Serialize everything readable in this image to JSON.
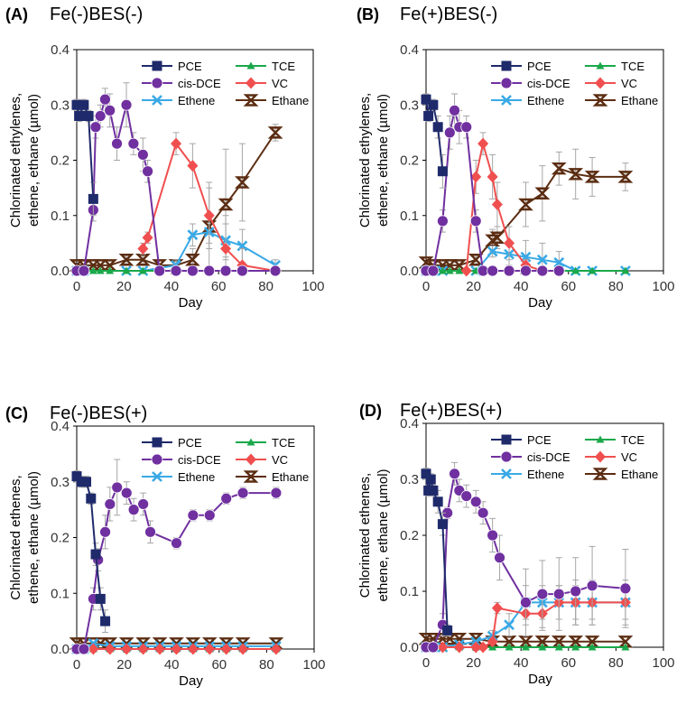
{
  "colors": {
    "PCE": "#1f2a6b",
    "TCE": "#1aa84a",
    "cis-DCE": "#7030a0",
    "VC": "#f04f4f",
    "Ethene": "#39a9e6",
    "Ethane": "#5c2d12",
    "error": "#a6a6a6",
    "axis": "#000000"
  },
  "chart_data": [
    {
      "id": "A",
      "type": "line",
      "panel_label": "(A)",
      "title": "Fe(-)BES(-)",
      "xlabel": "Day",
      "ylabel": [
        "Chlorinated ethylenes,",
        "ethene, ethane (µmol)"
      ],
      "xlim": [
        0,
        100
      ],
      "ylim": [
        0,
        0.4
      ],
      "xticks": [
        "0",
        "20",
        "40",
        "60",
        "80",
        "100"
      ],
      "yticks": [
        "0.0",
        "0.1",
        "0.2",
        "0.3",
        "0.4"
      ],
      "series": [
        {
          "name": "PCE",
          "marker": "square",
          "x": [
            0,
            1,
            3,
            5,
            7
          ],
          "y": [
            0.3,
            0.28,
            0.3,
            0.28,
            0.13
          ],
          "err": [
            0.01,
            0.01,
            0.01,
            0.01,
            0.03
          ]
        },
        {
          "name": "TCE",
          "marker": "triangle",
          "x": [
            0,
            3,
            7,
            10,
            14,
            21,
            28,
            35,
            42,
            49,
            56,
            63,
            70,
            84
          ],
          "y": [
            0,
            0,
            0,
            0,
            0,
            0,
            0,
            0,
            0,
            0,
            0,
            0,
            0,
            0
          ],
          "err": []
        },
        {
          "name": "cis-DCE",
          "marker": "circle",
          "x": [
            0,
            3,
            7,
            8,
            10,
            12,
            14,
            17,
            21,
            24,
            28,
            30,
            35,
            42,
            49,
            56,
            63,
            70,
            84
          ],
          "y": [
            0,
            0,
            0.11,
            0.26,
            0.28,
            0.31,
            0.29,
            0.23,
            0.3,
            0.23,
            0.21,
            0.18,
            0,
            0,
            0,
            0,
            0,
            0,
            0
          ],
          "err": [
            0,
            0,
            0.02,
            0.02,
            0.02,
            0.02,
            0.03,
            0.03,
            0.04,
            0.02,
            0.03,
            0.02,
            0,
            0,
            0,
            0,
            0,
            0,
            0
          ]
        },
        {
          "name": "VC",
          "marker": "diamond",
          "x": [
            28,
            30,
            42,
            49,
            56,
            63,
            70,
            84
          ],
          "y": [
            0.04,
            0.06,
            0.23,
            0.19,
            0.1,
            0.04,
            0.01,
            0
          ],
          "err": [
            0.01,
            0.01,
            0.02,
            0.04,
            0.05,
            0.06,
            0.03,
            0
          ]
        },
        {
          "name": "Ethene",
          "marker": "x",
          "x": [
            0,
            3,
            21,
            28,
            42,
            49,
            56,
            63,
            70,
            84
          ],
          "y": [
            0,
            0,
            0,
            0,
            0.01,
            0.065,
            0.07,
            0.055,
            0.045,
            0.01
          ],
          "err": [
            0,
            0,
            0,
            0,
            0.01,
            0.02,
            0.03,
            0.03,
            0.03,
            0.01
          ]
        },
        {
          "name": "Ethane",
          "marker": "hourglass",
          "x": [
            0,
            3,
            7,
            10,
            14,
            21,
            28,
            35,
            42,
            49,
            56,
            63,
            70,
            84
          ],
          "y": [
            0.01,
            0.01,
            0.01,
            0.01,
            0.01,
            0.02,
            0.02,
            0.01,
            0.01,
            0.02,
            0.08,
            0.12,
            0.16,
            0.25
          ],
          "err": [
            0,
            0,
            0,
            0,
            0,
            0.01,
            0.01,
            0,
            0.01,
            0.02,
            0.08,
            0.1,
            0.07,
            0.015
          ]
        }
      ]
    },
    {
      "id": "B",
      "type": "line",
      "panel_label": "(B)",
      "title": "Fe(+)BES(-)",
      "xlabel": "Day",
      "ylabel": [
        "Chlorinated ethylenes,",
        "ethene, ethane (µmol)"
      ],
      "xlim": [
        0,
        100
      ],
      "ylim": [
        0,
        0.4
      ],
      "xticks": [
        "0",
        "20",
        "40",
        "60",
        "80",
        "100"
      ],
      "yticks": [
        "0.0",
        "0.1",
        "0.2",
        "0.3",
        "0.4"
      ],
      "series": [
        {
          "name": "PCE",
          "marker": "square",
          "x": [
            0,
            1,
            3,
            5,
            7
          ],
          "y": [
            0.31,
            0.28,
            0.3,
            0.26,
            0.18
          ],
          "err": [
            0.01,
            0.01,
            0.01,
            0.02,
            0.03
          ]
        },
        {
          "name": "TCE",
          "marker": "triangle",
          "x": [
            0,
            3,
            7,
            10,
            14,
            21,
            28,
            35,
            42,
            49,
            56,
            63,
            70,
            84
          ],
          "y": [
            0,
            0,
            0,
            0,
            0,
            0,
            0,
            0,
            0,
            0,
            0,
            0,
            0,
            0
          ],
          "err": []
        },
        {
          "name": "cis-DCE",
          "marker": "circle",
          "x": [
            0,
            3,
            7,
            10,
            12,
            14,
            17,
            21,
            24,
            28,
            35,
            42,
            49,
            56
          ],
          "y": [
            0,
            0,
            0.09,
            0.25,
            0.29,
            0.26,
            0.26,
            0.09,
            0,
            0,
            0,
            0,
            0,
            0
          ],
          "err": [
            0,
            0,
            0.02,
            0.03,
            0.03,
            0.03,
            0.02,
            0.02,
            0,
            0,
            0,
            0,
            0,
            0
          ]
        },
        {
          "name": "VC",
          "marker": "diamond",
          "x": [
            17,
            21,
            24,
            28,
            30,
            35,
            42,
            49,
            56
          ],
          "y": [
            0,
            0.17,
            0.23,
            0.17,
            0.12,
            0.05,
            0.01,
            0,
            0
          ],
          "err": [
            0,
            0.03,
            0.02,
            0.04,
            0.04,
            0.03,
            0.01,
            0,
            0
          ]
        },
        {
          "name": "Ethene",
          "marker": "x",
          "x": [
            0,
            3,
            7,
            21,
            28,
            35,
            42,
            49,
            56,
            63,
            70,
            84
          ],
          "y": [
            0,
            0,
            0,
            0,
            0.035,
            0.03,
            0.025,
            0.02,
            0.015,
            0,
            0,
            0
          ],
          "err": [
            0,
            0,
            0,
            0,
            0.01,
            0.02,
            0.03,
            0.03,
            0.02,
            0,
            0,
            0
          ]
        },
        {
          "name": "Ethane",
          "marker": "hourglass",
          "x": [
            0,
            3,
            7,
            10,
            14,
            21,
            28,
            30,
            42,
            49,
            56,
            63,
            70,
            84
          ],
          "y": [
            0.015,
            0.01,
            0.01,
            0.01,
            0.01,
            0.02,
            0.055,
            0.06,
            0.12,
            0.14,
            0.185,
            0.175,
            0.17,
            0.17
          ],
          "err": [
            0,
            0,
            0,
            0,
            0,
            0.01,
            0.02,
            0.02,
            0.04,
            0.05,
            0.03,
            0.045,
            0.035,
            0.025
          ]
        }
      ]
    },
    {
      "id": "C",
      "type": "line",
      "panel_label": "(C)",
      "title": "Fe(-)BES(+)",
      "xlabel": "Day",
      "ylabel": [
        "Chlorinated ethenes,",
        "ethene, ethane (µmol)"
      ],
      "xlim": [
        0,
        100
      ],
      "ylim": [
        0,
        0.4
      ],
      "xticks": [
        "0",
        "20",
        "40",
        "60",
        "80",
        "100"
      ],
      "yticks": [
        "0.0",
        "0.1",
        "0.2",
        "0.3",
        "0.4"
      ],
      "series": [
        {
          "name": "PCE",
          "marker": "square",
          "x": [
            0,
            2,
            4,
            6,
            8,
            10,
            12
          ],
          "y": [
            0.31,
            0.3,
            0.3,
            0.27,
            0.17,
            0.09,
            0.05
          ],
          "err": [
            0.01,
            0.01,
            0.01,
            0.01,
            0.02,
            0.02,
            0.02
          ]
        },
        {
          "name": "TCE",
          "marker": "triangle",
          "x": [
            0,
            7,
            14,
            21,
            28,
            35,
            42,
            49,
            56,
            63,
            70,
            84
          ],
          "y": [
            0,
            0,
            0,
            0,
            0,
            0,
            0,
            0,
            0,
            0,
            0,
            0
          ],
          "err": []
        },
        {
          "name": "cis-DCE",
          "marker": "circle",
          "x": [
            0,
            3,
            7,
            9,
            12,
            14,
            17,
            21,
            24,
            28,
            31,
            42,
            49,
            56,
            63,
            70,
            84
          ],
          "y": [
            0,
            0,
            0.09,
            0.16,
            0.21,
            0.26,
            0.29,
            0.28,
            0.25,
            0.26,
            0.21,
            0.19,
            0.24,
            0.24,
            0.27,
            0.28,
            0.28
          ],
          "err": [
            0,
            0,
            0.02,
            0.02,
            0.03,
            0.03,
            0.05,
            0.02,
            0.02,
            0.02,
            0.02,
            0.01,
            0.01,
            0.01,
            0.01,
            0.01,
            0.01
          ]
        },
        {
          "name": "VC",
          "marker": "diamond",
          "x": [
            0,
            7,
            14,
            21,
            28,
            35,
            42,
            49,
            56,
            63,
            70,
            84
          ],
          "y": [
            0,
            0,
            0,
            0,
            0,
            0,
            0,
            0,
            0,
            0,
            0,
            0
          ],
          "err": []
        },
        {
          "name": "Ethene",
          "marker": "x",
          "x": [
            0,
            3,
            7,
            14,
            21,
            28,
            35,
            42,
            49,
            56,
            63,
            70,
            84
          ],
          "y": [
            0,
            0,
            0.01,
            0.005,
            0.005,
            0.005,
            0.005,
            0.005,
            0.005,
            0.005,
            0.005,
            0.005,
            0.005
          ],
          "err": []
        },
        {
          "name": "Ethane",
          "marker": "hourglass",
          "x": [
            0,
            3,
            7,
            10,
            14,
            21,
            28,
            35,
            42,
            49,
            56,
            63,
            70,
            84
          ],
          "y": [
            0.01,
            0.01,
            0.01,
            0.01,
            0.01,
            0.01,
            0.01,
            0.01,
            0.01,
            0.01,
            0.01,
            0.01,
            0.01,
            0.01
          ],
          "err": []
        }
      ]
    },
    {
      "id": "D",
      "type": "line",
      "panel_label": "(D)",
      "title": "Fe(+)BES(+)",
      "xlabel": "Day",
      "ylabel": [
        "Chlorinated ethenes,",
        "ethene, ethane (µmol)"
      ],
      "xlim": [
        0,
        100
      ],
      "ylim": [
        0,
        0.4
      ],
      "xticks": [
        "0",
        "20",
        "40",
        "60",
        "80",
        "100"
      ],
      "yticks": [
        "0.0",
        "0.1",
        "0.2",
        "0.3",
        "0.4"
      ],
      "series": [
        {
          "name": "PCE",
          "marker": "square",
          "x": [
            0,
            1,
            2,
            3,
            5,
            7,
            9
          ],
          "y": [
            0.31,
            0.28,
            0.3,
            0.28,
            0.26,
            0.22,
            0.03
          ],
          "err": [
            0.01,
            0.01,
            0.01,
            0.01,
            0.02,
            0.02,
            0.01
          ]
        },
        {
          "name": "TCE",
          "marker": "triangle",
          "x": [
            0,
            7,
            14,
            21,
            28,
            35,
            42,
            49,
            56,
            63,
            70,
            84
          ],
          "y": [
            0,
            0,
            0,
            0,
            0,
            0,
            0,
            0,
            0,
            0,
            0,
            0
          ],
          "err": []
        },
        {
          "name": "cis-DCE",
          "marker": "circle",
          "x": [
            0,
            3,
            7,
            9,
            12,
            14,
            17,
            21,
            24,
            28,
            31,
            42,
            49,
            56,
            63,
            70,
            84
          ],
          "y": [
            0,
            0,
            0.04,
            0.24,
            0.31,
            0.28,
            0.27,
            0.26,
            0.24,
            0.2,
            0.16,
            0.08,
            0.095,
            0.095,
            0.1,
            0.11,
            0.105
          ],
          "err": [
            0,
            0,
            0.02,
            0.01,
            0.02,
            0.02,
            0.02,
            0.02,
            0.02,
            0.03,
            0.04,
            0.06,
            0.06,
            0.065,
            0.06,
            0.07,
            0.07
          ]
        },
        {
          "name": "VC",
          "marker": "diamond",
          "x": [
            0,
            7,
            14,
            21,
            24,
            28,
            30,
            42,
            49,
            56,
            63,
            70,
            84
          ],
          "y": [
            0,
            0,
            0,
            0,
            0,
            0.01,
            0.07,
            0.06,
            0.06,
            0.08,
            0.08,
            0.08,
            0.08
          ],
          "err": [
            0,
            0,
            0,
            0,
            0,
            0,
            0.01,
            0.02,
            0.03,
            0.03,
            0.03,
            0.03,
            0.03
          ]
        },
        {
          "name": "Ethene",
          "marker": "x",
          "x": [
            0,
            3,
            7,
            14,
            21,
            28,
            35,
            42,
            49,
            56,
            63,
            70,
            84
          ],
          "y": [
            0,
            0,
            0,
            0.005,
            0.01,
            0.02,
            0.04,
            0.08,
            0.08,
            0.08,
            0.08,
            0.08,
            0.08
          ],
          "err": [
            0,
            0,
            0,
            0,
            0,
            0.01,
            0.02,
            0.03,
            0.03,
            0.03,
            0.04,
            0.04,
            0.04
          ]
        },
        {
          "name": "Ethane",
          "marker": "hourglass",
          "x": [
            0,
            3,
            7,
            10,
            14,
            21,
            28,
            35,
            42,
            49,
            56,
            63,
            70,
            84
          ],
          "y": [
            0.015,
            0.015,
            0.015,
            0.015,
            0.015,
            0.015,
            0.01,
            0.01,
            0.01,
            0.01,
            0.01,
            0.01,
            0.01,
            0.01
          ],
          "err": [
            0,
            0,
            0,
            0,
            0,
            0,
            0,
            0,
            0,
            0,
            0,
            0,
            0,
            0
          ]
        }
      ]
    }
  ]
}
